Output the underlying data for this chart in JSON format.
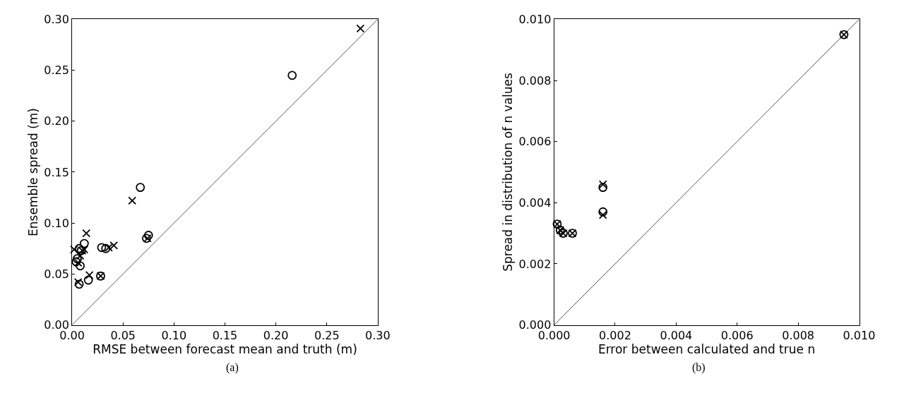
{
  "chart_data": [
    {
      "type": "scatter",
      "xlabel": "RMSE between forecast mean and truth (m)",
      "ylabel": "Ensemble spread (m)",
      "annotations": [
        "(a)"
      ],
      "xlim": [
        0,
        0.3
      ],
      "ylim": [
        0,
        0.3
      ],
      "xticks": [
        {
          "value": 0,
          "label": "0.00"
        },
        {
          "value": 0.05,
          "label": "0.05"
        },
        {
          "value": 0.1,
          "label": "0.10"
        },
        {
          "value": 0.15,
          "label": "0.15"
        },
        {
          "value": 0.2,
          "label": "0.20"
        },
        {
          "value": 0.25,
          "label": "0.25"
        },
        {
          "value": 0.3,
          "label": "0.30"
        }
      ],
      "yticks": [
        {
          "value": 0,
          "label": "0.00"
        },
        {
          "value": 0.05,
          "label": "0.05"
        },
        {
          "value": 0.1,
          "label": "0.10"
        },
        {
          "value": 0.15,
          "label": "0.15"
        },
        {
          "value": 0.2,
          "label": "0.20"
        },
        {
          "value": 0.25,
          "label": "0.25"
        },
        {
          "value": 0.3,
          "label": "0.30"
        }
      ],
      "grid": false,
      "series": [
        {
          "type": "line",
          "color": "#555555",
          "marker": "none",
          "x": [
            0,
            0.3
          ],
          "values": [
            0,
            0.3
          ]
        },
        {
          "color": "#000000",
          "marker": "circle",
          "x": [
            0.216,
            0.067,
            0.073,
            0.075,
            0.029,
            0.033,
            0.012,
            0.007,
            0.009,
            0.005,
            0.008,
            0.007,
            0.016,
            0.028,
            0.004
          ],
          "values": [
            0.245,
            0.135,
            0.085,
            0.088,
            0.076,
            0.075,
            0.08,
            0.075,
            0.073,
            0.065,
            0.058,
            0.04,
            0.044,
            0.048,
            0.062
          ]
        },
        {
          "color": "#000000",
          "marker": "cross",
          "x": [
            0.283,
            0.059,
            0.014,
            0.041,
            0.036,
            0.074,
            0.002,
            0.01,
            0.012,
            0.006,
            0.017,
            0.028,
            0.006,
            0.008
          ],
          "values": [
            0.291,
            0.122,
            0.09,
            0.078,
            0.076,
            0.085,
            0.074,
            0.073,
            0.074,
            0.061,
            0.049,
            0.048,
            0.042,
            0.068
          ]
        }
      ]
    },
    {
      "type": "scatter",
      "xlabel": "Error between calculated and true n",
      "ylabel": "Spread in distribution of n values",
      "annotations": [
        "(b)"
      ],
      "xlim": [
        0,
        0.01
      ],
      "ylim": [
        0,
        0.01
      ],
      "xticks": [
        {
          "value": 0,
          "label": "0.000"
        },
        {
          "value": 0.002,
          "label": "0.002"
        },
        {
          "value": 0.004,
          "label": "0.004"
        },
        {
          "value": 0.006,
          "label": "0.006"
        },
        {
          "value": 0.008,
          "label": "0.008"
        },
        {
          "value": 0.01,
          "label": "0.010"
        }
      ],
      "yticks": [
        {
          "value": 0,
          "label": "0.000"
        },
        {
          "value": 0.002,
          "label": "0.002"
        },
        {
          "value": 0.004,
          "label": "0.004"
        },
        {
          "value": 0.006,
          "label": "0.006"
        },
        {
          "value": 0.008,
          "label": "0.008"
        },
        {
          "value": 0.01,
          "label": "0.010"
        }
      ],
      "grid": false,
      "series": [
        {
          "type": "line",
          "color": "#555555",
          "marker": "none",
          "x": [
            0,
            0.01
          ],
          "values": [
            0,
            0.01
          ]
        },
        {
          "color": "#000000",
          "marker": "circle",
          "x": [
            0.0001,
            0.0002,
            0.0003,
            0.0006,
            0.0016,
            0.0016,
            0.0095
          ],
          "values": [
            0.0033,
            0.0031,
            0.003,
            0.003,
            0.0037,
            0.0045,
            0.0095
          ]
        },
        {
          "color": "#000000",
          "marker": "cross",
          "x": [
            0.0001,
            0.0002,
            0.0003,
            0.0006,
            0.0016,
            0.0016,
            0.0095
          ],
          "values": [
            0.0033,
            0.0031,
            0.003,
            0.003,
            0.0036,
            0.0046,
            0.0095
          ]
        }
      ]
    }
  ]
}
